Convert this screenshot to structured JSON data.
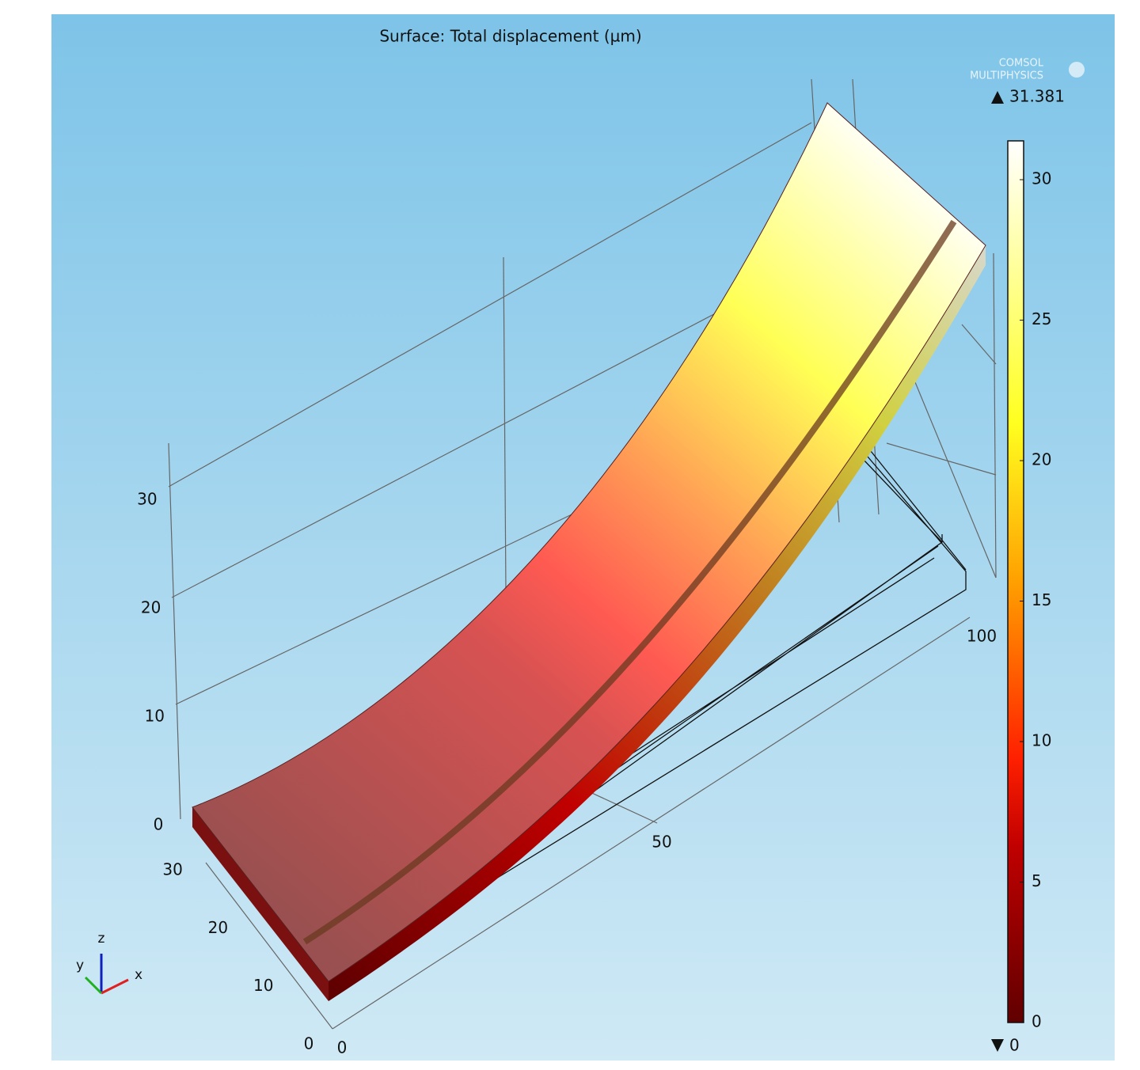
{
  "header": {
    "title": "Surface: Total displacement (µm)",
    "logo": [
      "COMSOL",
      "MULTIPHYSICS"
    ]
  },
  "colorbar": {
    "min": 0,
    "max": 31.381,
    "ticks": [
      0,
      5,
      10,
      15,
      20,
      25,
      30
    ]
  },
  "axes": {
    "z": {
      "ticks": [
        0,
        10,
        20,
        30
      ]
    },
    "y": {
      "ticks": [
        0,
        10,
        20,
        30
      ]
    },
    "x": {
      "ticks": [
        0,
        50,
        100
      ]
    }
  },
  "triad": {
    "x": "x",
    "y": "y",
    "z": "z"
  }
}
